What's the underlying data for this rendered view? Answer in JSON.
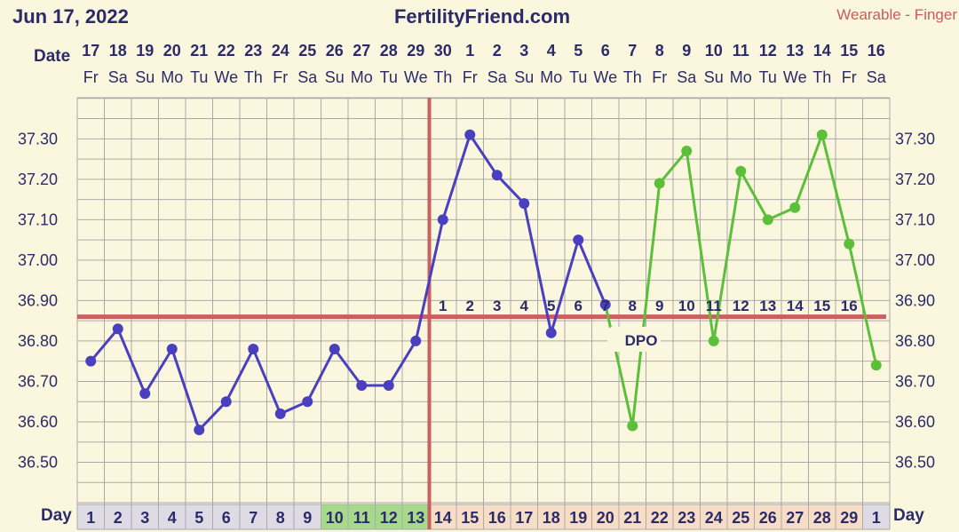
{
  "header": {
    "date": "Jun 17, 2022",
    "site": "FertilityFriend.com",
    "source": "Wearable - Finger"
  },
  "labels": {
    "date_row": "Date",
    "day_row": "Day",
    "dpo": "DPO"
  },
  "colors": {
    "pre_ovulation": "#4a3fbf",
    "post_ovulation": "#5cbf3a",
    "coverline": "#c86060",
    "fertile_day_bg": "#a6d98a",
    "luteal_day_bg": "#f7dcc6",
    "follicular_day_bg": "#dedbe5",
    "next_cycle_day_bg": "#dedbe5",
    "grid": "#aaaaaa",
    "background": "#fbf7df"
  },
  "chart_data": {
    "type": "line",
    "title": "",
    "xlabel": "Day",
    "ylabel": "",
    "ylim": [
      36.4,
      37.4
    ],
    "y_ticks": [
      "36.50",
      "36.60",
      "36.70",
      "36.80",
      "36.90",
      "37.00",
      "37.10",
      "37.20",
      "37.30"
    ],
    "dates": [
      "17",
      "18",
      "19",
      "20",
      "21",
      "22",
      "23",
      "24",
      "25",
      "26",
      "27",
      "28",
      "29",
      "30",
      "1",
      "2",
      "3",
      "4",
      "5",
      "6",
      "7",
      "8",
      "9",
      "10",
      "11",
      "12",
      "13",
      "14",
      "15",
      "16"
    ],
    "weekdays": [
      "Fr",
      "Sa",
      "Su",
      "Mo",
      "Tu",
      "We",
      "Th",
      "Fr",
      "Sa",
      "Su",
      "Mo",
      "Tu",
      "We",
      "Th",
      "Fr",
      "Sa",
      "Su",
      "Mo",
      "Tu",
      "We",
      "Th",
      "Fr",
      "Sa",
      "Su",
      "Mo",
      "Tu",
      "We",
      "Th",
      "Fr",
      "Sa"
    ],
    "cycle_days": [
      "1",
      "2",
      "3",
      "4",
      "5",
      "6",
      "7",
      "8",
      "9",
      "10",
      "11",
      "12",
      "13",
      "14",
      "15",
      "16",
      "17",
      "18",
      "19",
      "20",
      "21",
      "22",
      "23",
      "24",
      "25",
      "26",
      "27",
      "28",
      "29",
      "1"
    ],
    "day_phase": [
      "f",
      "f",
      "f",
      "f",
      "f",
      "f",
      "f",
      "f",
      "f",
      "g",
      "g",
      "g",
      "g",
      "l",
      "l",
      "l",
      "l",
      "l",
      "l",
      "l",
      "l",
      "l",
      "l",
      "l",
      "l",
      "l",
      "l",
      "l",
      "l",
      "f"
    ],
    "temperatures": [
      36.75,
      36.83,
      36.67,
      36.78,
      36.58,
      36.65,
      36.78,
      36.62,
      36.65,
      36.78,
      36.69,
      36.69,
      36.8,
      37.1,
      37.31,
      37.21,
      37.14,
      36.82,
      37.05,
      36.89,
      36.59,
      37.19,
      37.27,
      36.8,
      37.22,
      37.1,
      37.13,
      37.31,
      37.04,
      36.74
    ],
    "series_color_index": [
      0,
      0,
      0,
      0,
      0,
      0,
      0,
      0,
      0,
      0,
      0,
      0,
      0,
      0,
      0,
      0,
      0,
      0,
      0,
      0,
      1,
      1,
      1,
      1,
      1,
      1,
      1,
      1,
      1,
      1
    ],
    "ovulation_day_index": 12,
    "coverline": 36.86,
    "dpo": [
      "1",
      "2",
      "3",
      "4",
      "5",
      "6",
      "7",
      "8",
      "9",
      "10",
      "11",
      "12",
      "13",
      "14",
      "15",
      "16"
    ],
    "dpo_start_index": 13
  }
}
